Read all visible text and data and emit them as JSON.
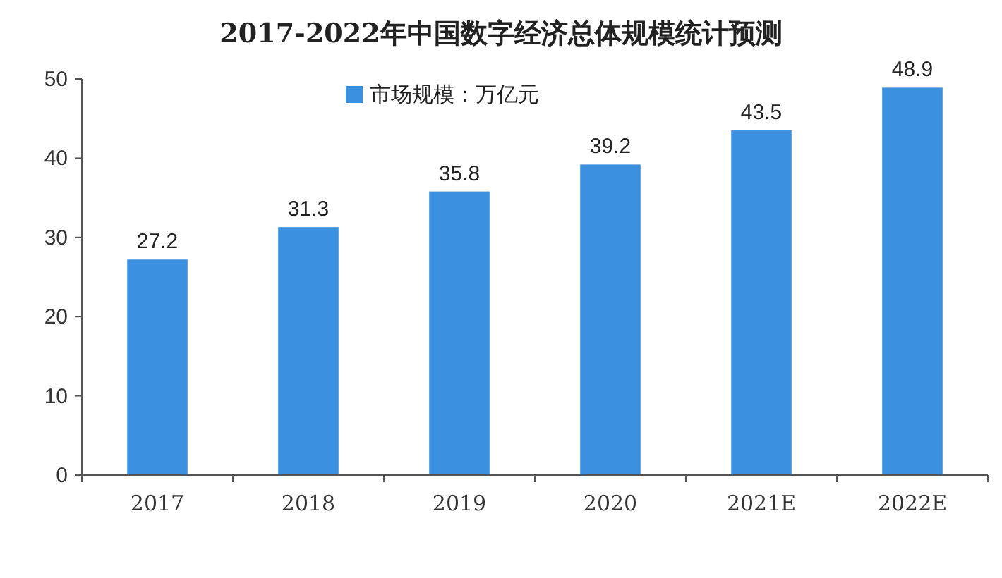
{
  "chart_data": {
    "type": "bar",
    "title": "2017-2022年中国数字经济总体规模统计预测",
    "categories": [
      "2017",
      "2018",
      "2019",
      "2020",
      "2021E",
      "2022E"
    ],
    "series": [
      {
        "name": "市场规模：万亿元",
        "color": "#3b91e0",
        "values": [
          27.2,
          31.3,
          35.8,
          39.2,
          43.5,
          48.9
        ]
      }
    ],
    "ylim": [
      0,
      50
    ],
    "yticks": [
      0,
      10,
      20,
      30,
      40,
      50
    ],
    "data_labels": true,
    "legend": "top"
  }
}
